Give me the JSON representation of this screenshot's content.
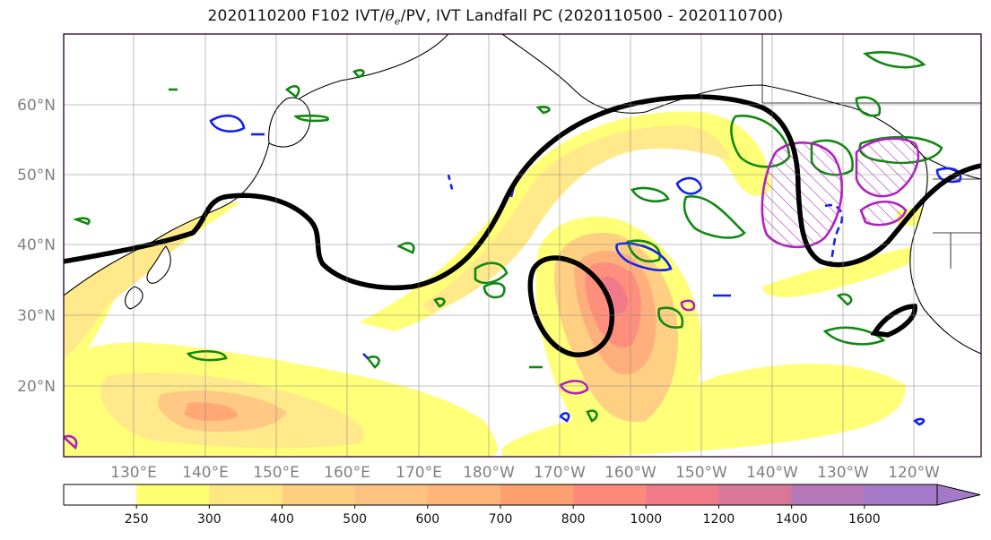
{
  "title": {
    "prefix": "2020110200 F102 IVT/",
    "theta_symbol": "θ",
    "theta_sub": "e",
    "suffix": "/PV, IVT Landfall PC (2020110500 - 2020110700)"
  },
  "map": {
    "lat_labels": [
      "60°N",
      "50°N",
      "40°N",
      "30°N",
      "20°N"
    ],
    "lon_labels": [
      "130°E",
      "140°E",
      "150°E",
      "160°E",
      "170°E",
      "180°W",
      "170°W",
      "160°W",
      "150°W",
      "140°W",
      "130°W",
      "120°W"
    ],
    "grid": true,
    "layers": {
      "ivt_fill": "IVT shading",
      "theta_e_contours": "θe contours (green)",
      "pv_contours": "PV contours (blue)",
      "landfall_pc": "IVT landfall PC (magenta hatched)",
      "jet_contour": "black bold contour"
    }
  },
  "colorbar": {
    "levels": [
      "250",
      "300",
      "400",
      "500",
      "600",
      "700",
      "800",
      "1000",
      "1200",
      "1400",
      "1600"
    ],
    "colors": [
      "#ffffff",
      "#ffff70",
      "#ffe880",
      "#ffd080",
      "#ffc280",
      "#ffb47a",
      "#ffa070",
      "#ff8a7a",
      "#f07a88",
      "#d87898",
      "#b478b8",
      "#a47ac8"
    ],
    "extend": "max"
  }
}
